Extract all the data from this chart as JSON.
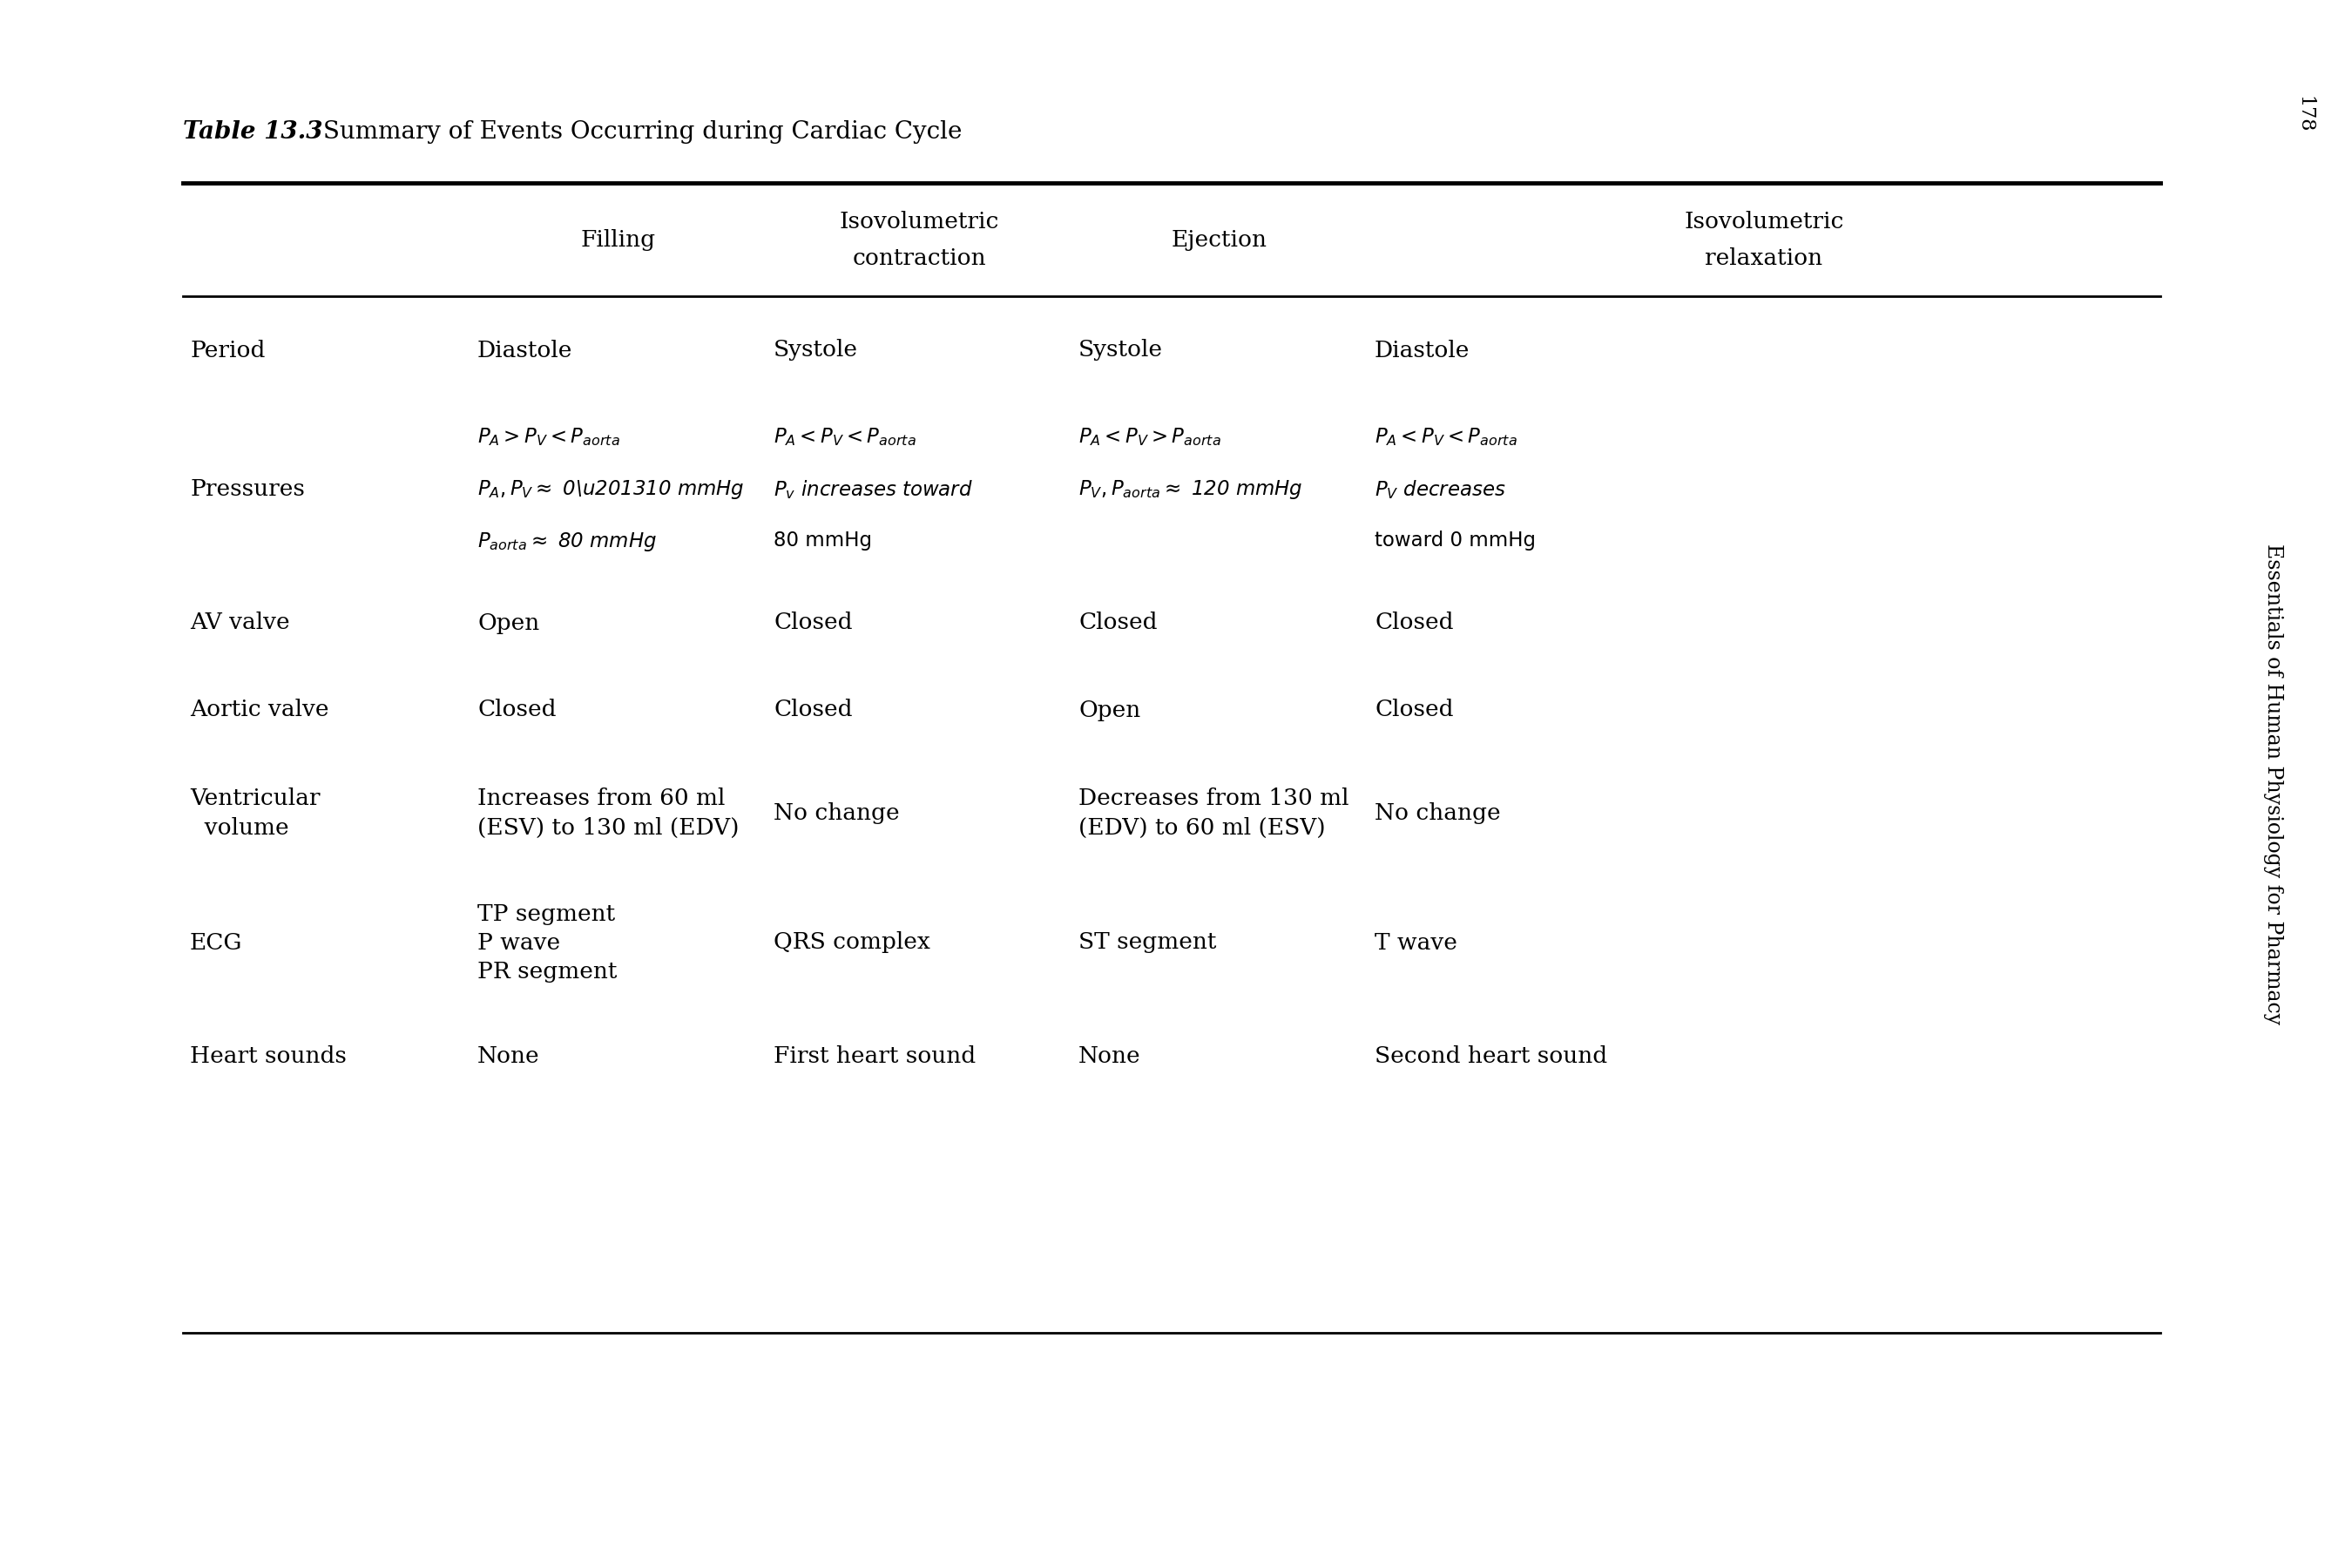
{
  "title_bold": "Table 13.3",
  "title_regular": " Summary of Events Occurring during Cardiac Cycle",
  "background_color": "#ffffff",
  "text_color": "#000000",
  "side_text": "Essentials of Human Physiology for Pharmacy",
  "page_number": "178",
  "col_headers": [
    "Filling",
    "Isovolumetric\ncontraction",
    "Ejection",
    "Isovolumetric\nrelaxation"
  ],
  "row_labels": [
    "Period",
    "Pressures",
    "AV valve",
    "Aortic valve",
    "Ventricular\n  volume",
    "ECG",
    "Heart sounds"
  ],
  "simple_cells": {
    "0": [
      "Diastole",
      "Systole",
      "Systole",
      "Diastole"
    ],
    "2": [
      "Open",
      "Closed",
      "Closed",
      "Closed"
    ],
    "3": [
      "Closed",
      "Closed",
      "Open",
      "Closed"
    ],
    "4": [
      "Increases from 60 ml\n(ESV) to 130 ml (EDV)",
      "No change",
      "Decreases from 130 ml\n(EDV) to 60 ml (ESV)",
      "No change"
    ],
    "5": [
      "TP segment\nP wave\nPR segment",
      "QRS complex",
      "ST segment",
      "T wave"
    ],
    "6": [
      "None",
      "First heart sound",
      "None",
      "Second heart sound"
    ]
  }
}
